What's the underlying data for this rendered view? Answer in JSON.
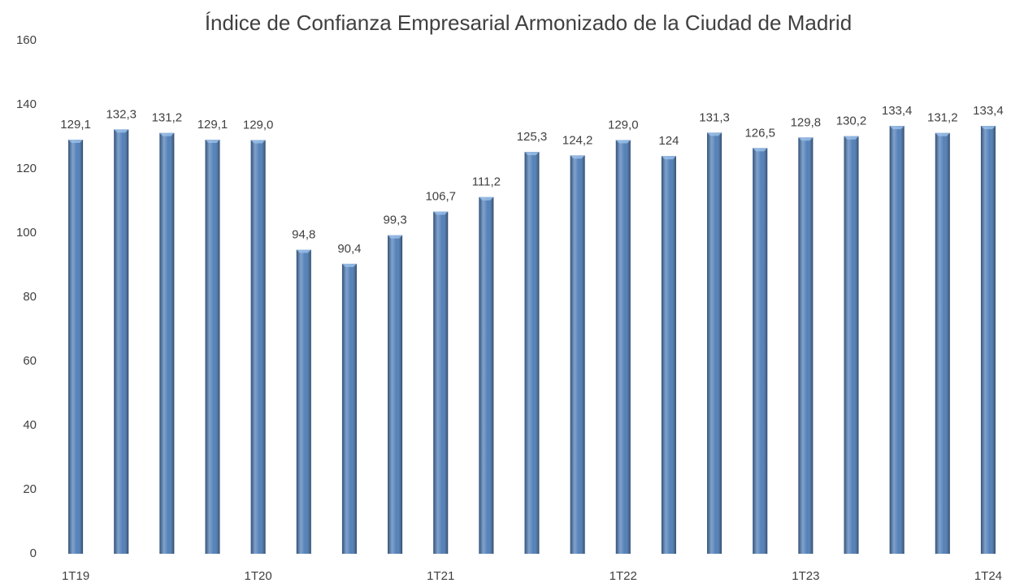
{
  "chart_data": {
    "type": "bar",
    "title": "Índice de Confianza Empresarial Armonizado de la Ciudad de Madrid",
    "categories": [
      "1T19",
      null,
      null,
      null,
      "1T20",
      null,
      null,
      null,
      "1T21",
      null,
      null,
      null,
      "1T22",
      null,
      null,
      null,
      "1T23",
      null,
      null,
      null,
      "1T24"
    ],
    "values": [
      129.1,
      132.3,
      131.2,
      129.1,
      129.0,
      94.8,
      90.4,
      99.3,
      106.7,
      111.2,
      125.3,
      124.2,
      129.0,
      124,
      131.3,
      126.5,
      129.8,
      130.2,
      133.4,
      131.2,
      133.4
    ],
    "value_labels": [
      "129,1",
      "132,3",
      "131,2",
      "129,1",
      "129,0",
      "94,8",
      "90,4",
      "99,3",
      "106,7",
      "111,2",
      "125,3",
      "124,2",
      "129,0",
      "124",
      "131,3",
      "126,5",
      "129,8",
      "130,2",
      "133,4",
      "131,2",
      "133,4"
    ],
    "color": "#4a7ab5",
    "ylim": [
      0,
      160
    ],
    "yticks": [
      0,
      20,
      40,
      60,
      80,
      100,
      120,
      140,
      160
    ],
    "grid": false
  }
}
